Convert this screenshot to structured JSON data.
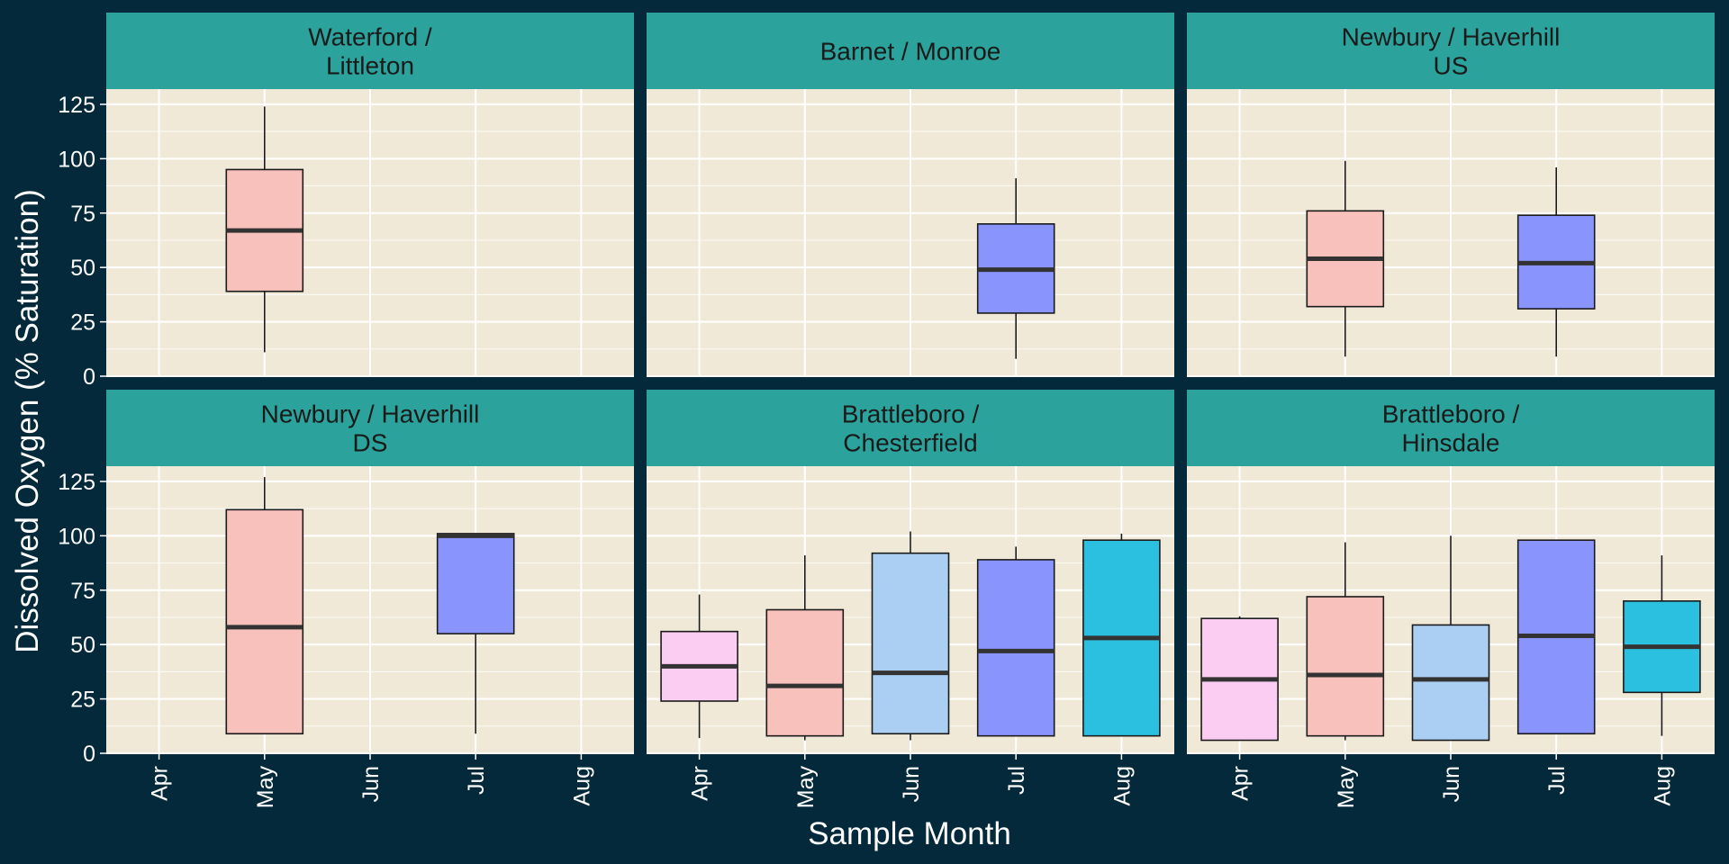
{
  "chart_data": {
    "type": "boxplot",
    "layout": "facet grid 2 rows x 3 columns",
    "xlabel": "Sample Month",
    "ylabel": "Dissolved Oxygen (% Saturation)",
    "ylim": [
      0,
      132
    ],
    "y_ticks": [
      "0",
      "25",
      "50",
      "75",
      "100",
      "125"
    ],
    "y_tick_values": [
      0,
      25,
      50,
      75,
      100,
      125
    ],
    "months": [
      "Apr",
      "May",
      "Jun",
      "Jul",
      "Aug"
    ],
    "month_colors": {
      "Apr": "#fbcdf3",
      "May": "#f8c1bc",
      "Jun": "#aacff3",
      "Jul": "#8a94fd",
      "Aug": "#2bbfe0"
    },
    "colors": {
      "background": "#03293a",
      "panel": "#f0e9d7",
      "strip": "#2ba39c",
      "grid": "#ffffff",
      "median": "#333333",
      "outline": "#1a1a1a"
    },
    "grid": true,
    "legend": "none",
    "facets": [
      {
        "title": [
          "Waterford /",
          "Littleton"
        ],
        "boxes": [
          {
            "month": "May",
            "min": 11,
            "q1": 39,
            "median": 67,
            "q3": 95,
            "max": 124
          }
        ]
      },
      {
        "title": [
          "Barnet / Monroe"
        ],
        "boxes": [
          {
            "month": "Jul",
            "min": 8,
            "q1": 29,
            "median": 49,
            "q3": 70,
            "max": 91
          }
        ]
      },
      {
        "title": [
          "Newbury / Haverhill",
          "US"
        ],
        "boxes": [
          {
            "month": "May",
            "min": 9,
            "q1": 32,
            "median": 54,
            "q3": 76,
            "max": 99
          },
          {
            "month": "Jul",
            "min": 9,
            "q1": 31,
            "median": 52,
            "q3": 74,
            "max": 96
          }
        ]
      },
      {
        "title": [
          "Newbury / Haverhill",
          "DS"
        ],
        "boxes": [
          {
            "month": "May",
            "min": 9,
            "q1": 9,
            "median": 58,
            "q3": 112,
            "max": 127
          },
          {
            "month": "Jul",
            "min": 9,
            "q1": 55,
            "median": 100,
            "q3": 101,
            "max": 101
          }
        ]
      },
      {
        "title": [
          "Brattleboro /",
          "Chesterfield"
        ],
        "boxes": [
          {
            "month": "Apr",
            "min": 7,
            "q1": 24,
            "median": 40,
            "q3": 56,
            "max": 73
          },
          {
            "month": "May",
            "min": 6,
            "q1": 8,
            "median": 31,
            "q3": 66,
            "max": 91
          },
          {
            "month": "Jun",
            "min": 6,
            "q1": 9,
            "median": 37,
            "q3": 92,
            "max": 102
          },
          {
            "month": "Jul",
            "min": 8,
            "q1": 8,
            "median": 47,
            "q3": 89,
            "max": 95
          },
          {
            "month": "Aug",
            "min": 8,
            "q1": 8,
            "median": 53,
            "q3": 98,
            "max": 101
          }
        ]
      },
      {
        "title": [
          "Brattleboro /",
          "Hinsdale"
        ],
        "boxes": [
          {
            "month": "Apr",
            "min": 6,
            "q1": 6,
            "median": 34,
            "q3": 62,
            "max": 63
          },
          {
            "month": "May",
            "min": 6,
            "q1": 8,
            "median": 36,
            "q3": 72,
            "max": 97
          },
          {
            "month": "Jun",
            "min": 6,
            "q1": 6,
            "median": 34,
            "q3": 59,
            "max": 100
          },
          {
            "month": "Jul",
            "min": 9,
            "q1": 9,
            "median": 54,
            "q3": 98,
            "max": 98
          },
          {
            "month": "Aug",
            "min": 8,
            "q1": 28,
            "median": 49,
            "q3": 70,
            "max": 91
          }
        ]
      }
    ]
  }
}
